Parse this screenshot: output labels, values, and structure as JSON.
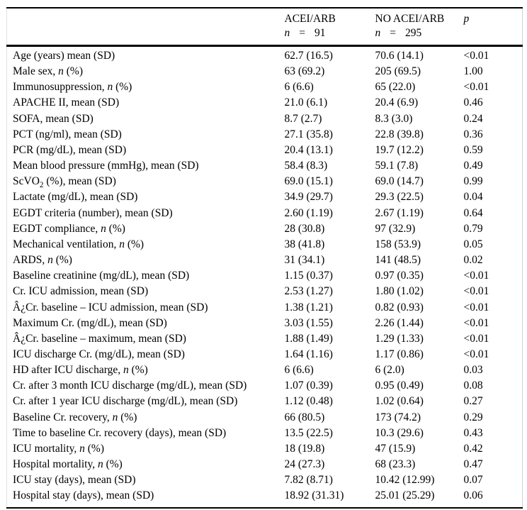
{
  "table": {
    "header": {
      "n_symbol": "n",
      "eq_symbol": "=",
      "p_label": "p",
      "group1": {
        "name": "ACEI/ARB",
        "n": "91"
      },
      "group2": {
        "name": "NO ACEI/ARB",
        "n": "295"
      }
    },
    "rows": [
      {
        "label": "Age (years) mean (SD)",
        "acei_arb": "62.7 (16.5)",
        "no_acei_arb": "70.6 (14.1)",
        "p": "<0.01"
      },
      {
        "label": "Male sex, *n* (%)",
        "acei_arb": "63 (69.2)",
        "no_acei_arb": "205 (69.5)",
        "p": "1.00"
      },
      {
        "label": "Immunosuppression, *n* (%)",
        "acei_arb": "6 (6.6)",
        "no_acei_arb": "65 (22.0)",
        "p": "<0.01"
      },
      {
        "label": "APACHE II, mean (SD)",
        "acei_arb": "21.0 (6.1)",
        "no_acei_arb": "20.4 (6.9)",
        "p": "0.46"
      },
      {
        "label": "SOFA, mean (SD)",
        "acei_arb": "8.7 (2.7)",
        "no_acei_arb": "8.3 (3.0)",
        "p": "0.24"
      },
      {
        "label": "PCT (ng/ml), mean (SD)",
        "acei_arb": "27.1 (35.8)",
        "no_acei_arb": "22.8 (39.8)",
        "p": "0.36"
      },
      {
        "label": "PCR (mg/dL), mean (SD)",
        "acei_arb": "20.4 (13.1)",
        "no_acei_arb": "19.7 (12.2)",
        "p": "0.59"
      },
      {
        "label": "Mean blood pressure (mmHg), mean (SD)",
        "acei_arb": "58.4 (8.3)",
        "no_acei_arb": "59.1 (7.8)",
        "p": "0.49"
      },
      {
        "label": "ScVO~2~ (%), mean (SD)",
        "acei_arb": "69.0 (15.1)",
        "no_acei_arb": "69.0 (14.7)",
        "p": "0.99"
      },
      {
        "label": "Lactate (mg/dL), mean (SD)",
        "acei_arb": "34.9 (29.7)",
        "no_acei_arb": "29.3 (22.5)",
        "p": "0.04"
      },
      {
        "label": "EGDT criteria (number), mean (SD)",
        "acei_arb": "2.60 (1.19)",
        "no_acei_arb": "2.67 (1.19)",
        "p": "0.64"
      },
      {
        "label": "EGDT compliance, *n* (%)",
        "acei_arb": "28 (30.8)",
        "no_acei_arb": "97 (32.9)",
        "p": "0.79"
      },
      {
        "label": "Mechanical ventilation, *n* (%)",
        "acei_arb": "38 (41.8)",
        "no_acei_arb": "158 (53.9)",
        "p": "0.05"
      },
      {
        "label": "ARDS, *n* (%)",
        "acei_arb": "31 (34.1)",
        "no_acei_arb": "141 (48.5)",
        "p": "0.02"
      },
      {
        "label": "Baseline creatinine (mg/dL), mean (SD)",
        "acei_arb": "1.15 (0.37)",
        "no_acei_arb": "0.97 (0.35)",
        "p": "<0.01"
      },
      {
        "label": "Cr. ICU admission, mean (SD)",
        "acei_arb": "2.53 (1.27)",
        "no_acei_arb": "1.80 (1.02)",
        "p": "<0.01"
      },
      {
        "label": "Â¿Cr. baseline – ICU admission, mean (SD)",
        "acei_arb": "1.38 (1.21)",
        "no_acei_arb": "0.82 (0.93)",
        "p": "<0.01"
      },
      {
        "label": "Maximum Cr. (mg/dL), mean (SD)",
        "acei_arb": "3.03 (1.55)",
        "no_acei_arb": "2.26 (1.44)",
        "p": "<0.01"
      },
      {
        "label": "Â¿Cr. baseline – maximum, mean (SD)",
        "acei_arb": "1.88 (1.49)",
        "no_acei_arb": "1.29 (1.33)",
        "p": "<0.01"
      },
      {
        "label": "ICU discharge Cr. (mg/dL), mean (SD)",
        "acei_arb": "1.64 (1.16)",
        "no_acei_arb": "1.17 (0.86)",
        "p": "<0.01"
      },
      {
        "label": "HD after ICU discharge, *n* (%)",
        "acei_arb": "6 (6.6)",
        "no_acei_arb": "6 (2.0)",
        "p": "0.03"
      },
      {
        "label": "Cr. after 3 month ICU discharge (mg/dL), mean (SD)",
        "acei_arb": "1.07 (0.39)",
        "no_acei_arb": "0.95 (0.49)",
        "p": "0.08"
      },
      {
        "label": "Cr. after 1 year ICU discharge (mg/dL), mean (SD)",
        "acei_arb": "1.12 (0.48)",
        "no_acei_arb": "1.02 (0.64)",
        "p": "0.27"
      },
      {
        "label": "Baseline Cr. recovery, *n* (%)",
        "acei_arb": "66 (80.5)",
        "no_acei_arb": "173 (74.2)",
        "p": "0.29"
      },
      {
        "label": "Time to baseline Cr. recovery (days), mean (SD)",
        "acei_arb": "13.5 (22.5)",
        "no_acei_arb": "10.3 (29.6)",
        "p": "0.43"
      },
      {
        "label": "ICU mortality, *n* (%)",
        "acei_arb": "18 (19.8)",
        "no_acei_arb": "47 (15.9)",
        "p": "0.42"
      },
      {
        "label": "Hospital mortality, *n* (%)",
        "acei_arb": "24 (27.3)",
        "no_acei_arb": "68 (23.3)",
        "p": "0.47"
      },
      {
        "label": "ICU stay (days), mean (SD)",
        "acei_arb": "7.82 (8.71)",
        "no_acei_arb": "10.42 (12.99)",
        "p": "0.07"
      },
      {
        "label": "Hospital stay (days), mean (SD)",
        "acei_arb": "18.92 (31.31)",
        "no_acei_arb": "25.01 (25.29)",
        "p": "0.06"
      }
    ]
  }
}
